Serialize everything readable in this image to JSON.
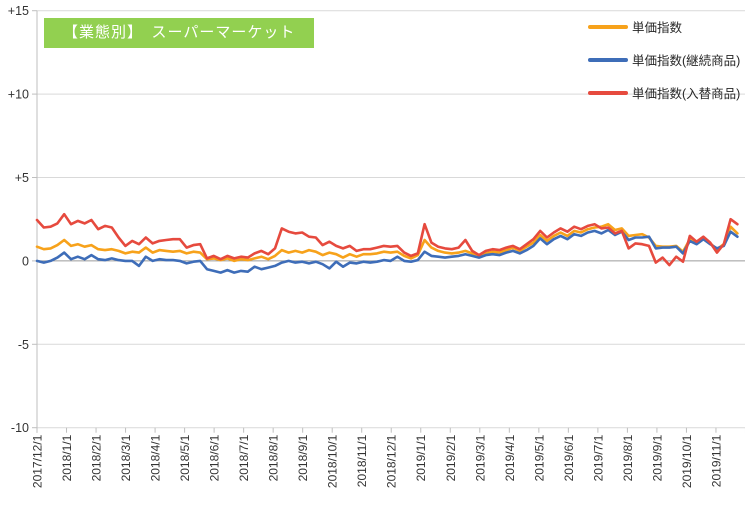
{
  "title": {
    "text": "【業態別】　スーパーマーケット",
    "bg_color": "#92D050",
    "text_color": "#FFFFFF"
  },
  "chart_data": {
    "type": "line",
    "title": "【業態別】　スーパーマーケット",
    "x_unit": "week",
    "x_tick_labels": [
      "2017/12/1",
      "2018/1/1",
      "2018/2/1",
      "2018/3/1",
      "2018/4/1",
      "2018/5/1",
      "2018/6/1",
      "2018/7/1",
      "2018/8/1",
      "2018/9/1",
      "2018/10/1",
      "2018/11/1",
      "2018/12/1",
      "2019/1/1",
      "2019/2/1",
      "2019/3/1",
      "2019/4/1",
      "2019/5/1",
      "2019/6/1",
      "2019/7/1",
      "2019/8/1",
      "2019/9/1",
      "2019/10/1",
      "2019/11/1"
    ],
    "y_ticks": [
      {
        "label": "+15",
        "value": 15
      },
      {
        "label": "+10",
        "value": 10
      },
      {
        "label": "+5",
        "value": 5
      },
      {
        "label": "0",
        "value": 0
      },
      {
        "label": "-5",
        "value": -5
      },
      {
        "label": "-10",
        "value": -10
      }
    ],
    "ylim": [
      -10,
      15
    ],
    "grid": true,
    "legend_position": "top-right",
    "series": [
      {
        "name": "単価指数",
        "color": "#F7A21B",
        "values": [
          0.85,
          0.7,
          0.75,
          0.95,
          1.25,
          0.9,
          1.0,
          0.85,
          0.95,
          0.7,
          0.65,
          0.7,
          0.6,
          0.45,
          0.55,
          0.5,
          0.8,
          0.5,
          0.65,
          0.6,
          0.55,
          0.6,
          0.45,
          0.55,
          0.5,
          0.1,
          0.15,
          0.05,
          0.15,
          0.0,
          0.1,
          0.05,
          0.15,
          0.25,
          0.1,
          0.3,
          0.65,
          0.5,
          0.6,
          0.5,
          0.65,
          0.55,
          0.35,
          0.5,
          0.4,
          0.2,
          0.4,
          0.25,
          0.4,
          0.4,
          0.45,
          0.55,
          0.5,
          0.55,
          0.3,
          0.15,
          0.35,
          1.25,
          0.8,
          0.6,
          0.5,
          0.45,
          0.5,
          0.6,
          0.45,
          0.25,
          0.45,
          0.55,
          0.5,
          0.65,
          0.8,
          0.6,
          0.85,
          1.1,
          1.55,
          1.2,
          1.5,
          1.7,
          1.5,
          1.8,
          1.7,
          1.9,
          2.0,
          2.05,
          2.2,
          1.85,
          1.95,
          1.5,
          1.55,
          1.6,
          1.4,
          0.9,
          0.85,
          0.85,
          0.9,
          0.55,
          1.3,
          1.1,
          1.35,
          1.05,
          0.7,
          1.0,
          2.05,
          1.65
        ]
      },
      {
        "name": "単価指数(継続商品)",
        "color": "#3E6DB8",
        "values": [
          0.0,
          -0.1,
          0.0,
          0.2,
          0.5,
          0.1,
          0.25,
          0.1,
          0.35,
          0.1,
          0.05,
          0.15,
          0.05,
          0.0,
          0.0,
          -0.3,
          0.25,
          0.0,
          0.1,
          0.05,
          0.05,
          0.0,
          -0.15,
          -0.05,
          0.0,
          -0.5,
          -0.6,
          -0.7,
          -0.55,
          -0.7,
          -0.6,
          -0.65,
          -0.35,
          -0.5,
          -0.4,
          -0.3,
          -0.1,
          0.0,
          -0.1,
          -0.05,
          -0.15,
          -0.05,
          -0.2,
          -0.45,
          -0.05,
          -0.35,
          -0.1,
          -0.15,
          -0.05,
          -0.1,
          -0.05,
          0.05,
          0.0,
          0.25,
          0.0,
          -0.05,
          0.05,
          0.55,
          0.3,
          0.25,
          0.2,
          0.25,
          0.3,
          0.4,
          0.3,
          0.2,
          0.35,
          0.4,
          0.35,
          0.5,
          0.6,
          0.45,
          0.65,
          0.9,
          1.35,
          1.0,
          1.3,
          1.5,
          1.3,
          1.6,
          1.5,
          1.7,
          1.8,
          1.65,
          1.85,
          1.55,
          1.75,
          1.25,
          1.4,
          1.4,
          1.45,
          0.75,
          0.8,
          0.8,
          0.85,
          0.45,
          1.2,
          1.0,
          1.3,
          1.0,
          0.75,
          0.9,
          1.75,
          1.45
        ]
      },
      {
        "name": "単価指数(入替商品)",
        "color": "#E64A3E",
        "values": [
          2.45,
          2.0,
          2.05,
          2.25,
          2.8,
          2.2,
          2.4,
          2.25,
          2.45,
          1.9,
          2.1,
          2.0,
          1.4,
          0.9,
          1.2,
          1.0,
          1.4,
          1.05,
          1.2,
          1.25,
          1.3,
          1.3,
          0.8,
          0.95,
          1.0,
          0.15,
          0.3,
          0.1,
          0.3,
          0.15,
          0.25,
          0.2,
          0.45,
          0.6,
          0.4,
          0.75,
          1.95,
          1.75,
          1.65,
          1.7,
          1.45,
          1.4,
          0.95,
          1.15,
          0.9,
          0.75,
          0.9,
          0.6,
          0.7,
          0.7,
          0.8,
          0.9,
          0.85,
          0.9,
          0.5,
          0.3,
          0.45,
          2.2,
          1.1,
          0.85,
          0.75,
          0.7,
          0.8,
          1.25,
          0.6,
          0.35,
          0.6,
          0.7,
          0.65,
          0.8,
          0.9,
          0.7,
          1.0,
          1.3,
          1.8,
          1.4,
          1.7,
          1.95,
          1.75,
          2.05,
          1.9,
          2.1,
          2.2,
          1.95,
          2.0,
          1.65,
          1.8,
          0.75,
          1.05,
          1.0,
          0.9,
          -0.1,
          0.2,
          -0.25,
          0.25,
          -0.05,
          1.5,
          1.15,
          1.45,
          1.1,
          0.5,
          1.0,
          2.5,
          2.2
        ]
      }
    ],
    "colors": {
      "grid": "#D9D9D9",
      "zero_line": "#9B9B9B",
      "axis": "#BFBFBF",
      "tick_text": "#333333"
    }
  }
}
